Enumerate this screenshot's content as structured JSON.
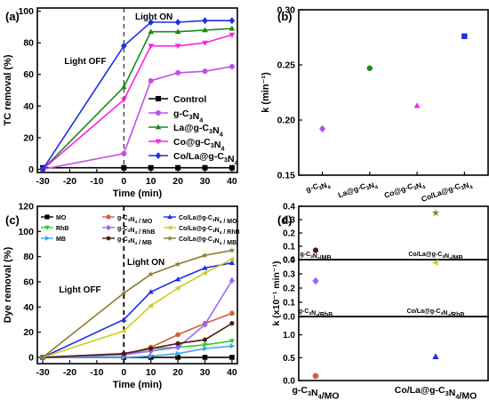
{
  "chart_data": [
    {
      "panel": "(a)",
      "type": "line",
      "xlabel": "Time (min)",
      "ylabel": "TC removal (%)",
      "xlim": [
        -32,
        42
      ],
      "ylim": [
        -2,
        102
      ],
      "xticks": [
        -30,
        -20,
        -10,
        0,
        10,
        20,
        30,
        40
      ],
      "yticks": [
        0,
        20,
        40,
        60,
        80,
        100
      ],
      "annotations": [
        "Light OFF",
        "Light ON"
      ],
      "light_switch_x": 0,
      "legend_position": "bottom-right",
      "grid": false,
      "series": [
        {
          "name": "Control",
          "color": "#000000",
          "marker": "square",
          "x": [
            -30,
            0,
            10,
            20,
            30,
            40
          ],
          "y": [
            1,
            1,
            1,
            1,
            1,
            1
          ]
        },
        {
          "name": "g-C₃N₄",
          "color": "#c050e8",
          "marker": "circle",
          "x": [
            -30,
            0,
            10,
            20,
            30,
            40
          ],
          "y": [
            0,
            10,
            56,
            61,
            62,
            65
          ]
        },
        {
          "name": "La@g-C₃N₄",
          "color": "#1a8a1a",
          "marker": "triangle-up",
          "x": [
            -30,
            0,
            10,
            20,
            30,
            40
          ],
          "y": [
            0,
            52,
            87,
            87,
            88,
            89
          ]
        },
        {
          "name": "Co@g-C₃N₄",
          "color": "#ff1ee6",
          "marker": "triangle-down",
          "x": [
            -30,
            0,
            10,
            20,
            30,
            40
          ],
          "y": [
            0,
            44,
            78,
            78,
            80,
            85
          ]
        },
        {
          "name": "Co/La@g-C₃N₄",
          "color": "#1d2fe8",
          "marker": "diamond",
          "x": [
            -30,
            0,
            10,
            20,
            30,
            40
          ],
          "y": [
            0,
            78,
            93,
            93,
            94,
            94
          ]
        }
      ]
    },
    {
      "panel": "(b)",
      "type": "scatter",
      "ylabel": "k (min⁻¹)",
      "ylim": [
        0.15,
        0.3
      ],
      "yticks": [
        0.15,
        0.2,
        0.25,
        0.3
      ],
      "categories": [
        "g-C₃N₄",
        "La@g-C₃N₄",
        "Co@g-C₃N₄",
        "Co/La@g-C₃N₄"
      ],
      "values": [
        0.192,
        0.247,
        0.213,
        0.276
      ],
      "colors": [
        "#b84de0",
        "#1a8a1a",
        "#ff1ee6",
        "#1d2fe8"
      ],
      "markers": [
        "diamond",
        "circle",
        "triangle-up",
        "square"
      ]
    },
    {
      "panel": "(c)",
      "type": "line",
      "xlabel": "Time (min)",
      "ylabel": "Dye removal (%)",
      "xlim": [
        -32,
        42
      ],
      "ylim": [
        -5,
        120
      ],
      "xticks": [
        -30,
        -20,
        -10,
        0,
        10,
        20,
        30,
        40
      ],
      "yticks": [
        0,
        20,
        40,
        60,
        80,
        100,
        120
      ],
      "annotations": [
        "Light OFF",
        "Light ON"
      ],
      "light_switch_x": 0,
      "legend_position": "top",
      "grid": false,
      "series": [
        {
          "name": "MO",
          "color": "#000000",
          "marker": "square",
          "x": [
            -30,
            0,
            10,
            20,
            30,
            40
          ],
          "y": [
            0,
            0,
            0,
            0,
            0,
            0
          ]
        },
        {
          "name": "RhB",
          "color": "#33cc33",
          "marker": "triangle-down",
          "x": [
            -30,
            0,
            10,
            20,
            30,
            40
          ],
          "y": [
            0,
            2,
            7,
            8,
            10,
            13
          ]
        },
        {
          "name": "MB",
          "color": "#3aa8e8",
          "marker": "triangle-right",
          "x": [
            -30,
            0,
            10,
            20,
            30,
            40
          ],
          "y": [
            0,
            0,
            1,
            3,
            7,
            9
          ]
        },
        {
          "name": "g-C₃N₄ / MO",
          "color": "#d06040",
          "marker": "circle",
          "x": [
            -30,
            0,
            10,
            20,
            30,
            40
          ],
          "y": [
            0,
            2,
            8,
            18,
            27,
            35
          ]
        },
        {
          "name": "g-C₃N₄ / RhB",
          "color": "#9966ff",
          "marker": "diamond",
          "x": [
            -30,
            0,
            10,
            20,
            30,
            40
          ],
          "y": [
            0,
            2,
            5,
            8,
            26,
            61
          ]
        },
        {
          "name": "g-C₃N₄ / MB",
          "color": "#4a1c10",
          "marker": "hexagon",
          "x": [
            -30,
            0,
            10,
            20,
            30,
            40
          ],
          "y": [
            0,
            3,
            7,
            11,
            14,
            27
          ]
        },
        {
          "name": "Co/La@g-C₃N₄ / MO",
          "color": "#1d2fe8",
          "marker": "triangle-up",
          "x": [
            -30,
            0,
            10,
            20,
            30,
            40
          ],
          "y": [
            0,
            30,
            52,
            62,
            71,
            75
          ]
        },
        {
          "name": "Co/La@g-C₃N₄ / RhB",
          "color": "#cccc22",
          "marker": "triangle-left",
          "x": [
            -30,
            0,
            10,
            20,
            30,
            40
          ],
          "y": [
            0,
            21,
            41,
            55,
            67,
            78
          ]
        },
        {
          "name": "Co/La@g-C₃N₄ / MB",
          "color": "#8b7d30",
          "marker": "star",
          "x": [
            -30,
            0,
            10,
            20,
            30,
            40
          ],
          "y": [
            0,
            51,
            66,
            74,
            81,
            85
          ]
        }
      ]
    },
    {
      "panel": "(d)",
      "type": "scatter",
      "ylabel": "k (x10⁻¹ min⁻¹)",
      "subpanels": [
        {
          "label": "MB",
          "ylim": [
            0,
            0.4
          ],
          "yticks": [
            0.0,
            0.1,
            0.2,
            0.3,
            0.4
          ],
          "categories": [
            "g-C₃N₄/MB",
            "Co/La@g-C₃N₄/MB"
          ],
          "values": [
            0.07,
            0.35
          ],
          "colors": [
            "#4a1c10",
            "#8b7d30"
          ],
          "markers": [
            "hexagon",
            "star"
          ]
        },
        {
          "label": "RhB",
          "ylim": [
            0,
            0.4
          ],
          "yticks": [
            0.0,
            0.1,
            0.2,
            0.3,
            0.4
          ],
          "categories": [
            "g-C₃N₄/RhB",
            "Co/La@g-C₃N₄/RhB"
          ],
          "values": [
            0.25,
            0.38
          ],
          "colors": [
            "#9966ff",
            "#cccc22"
          ],
          "markers": [
            "diamond",
            "triangle-left"
          ]
        },
        {
          "label": "MO",
          "ylim": [
            0,
            1.4
          ],
          "yticks": [
            0.0,
            0.5,
            1.0
          ],
          "categories": [
            "g-C₃N₄/MO",
            "Co/La@g-C₃N₄/MO"
          ],
          "values": [
            0.1,
            0.52
          ],
          "colors": [
            "#d06040",
            "#1d2fe8"
          ],
          "markers": [
            "circle",
            "triangle-up"
          ]
        }
      ]
    }
  ]
}
